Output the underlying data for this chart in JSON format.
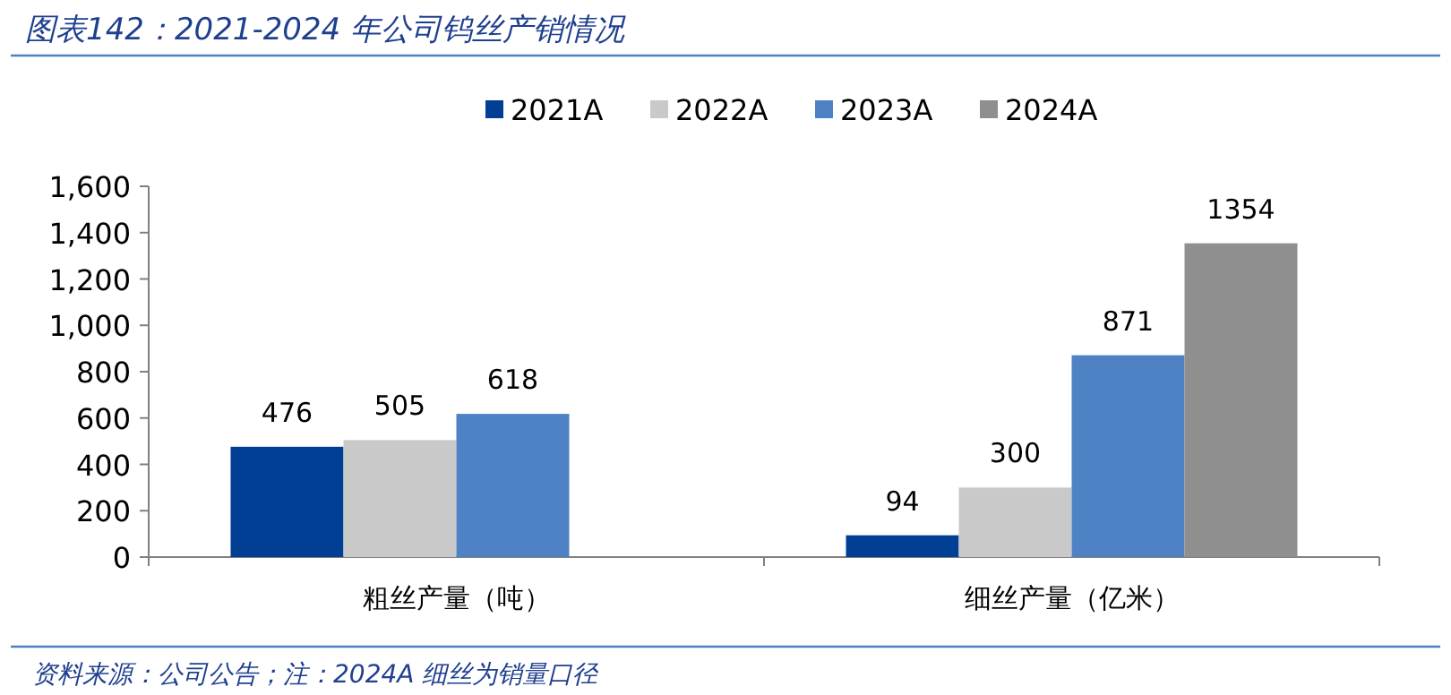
{
  "chart_data": {
    "type": "bar",
    "title": "图表142：2021-2024 年公司钨丝产销情况",
    "categories": [
      "粗丝产量（吨）",
      "细丝产量（亿米）"
    ],
    "series": [
      {
        "name": "2021A",
        "color": "#003f94",
        "values": [
          476,
          94
        ]
      },
      {
        "name": "2022A",
        "color": "#c9c9c9",
        "values": [
          505,
          300
        ]
      },
      {
        "name": "2023A",
        "color": "#4f82c4",
        "values": [
          618,
          871
        ]
      },
      {
        "name": "2024A",
        "color": "#8f8f8f",
        "values": [
          null,
          1354
        ]
      }
    ],
    "ylim": [
      0,
      1600
    ],
    "yticks": [
      0,
      {
        "value": 200,
        "label": "200"
      },
      {
        "value": 400,
        "label": "400"
      },
      {
        "value": 600,
        "label": "600"
      },
      {
        "value": 800,
        "label": "800"
      },
      {
        "value": 1000,
        "label": "1,000"
      },
      {
        "value": 1200,
        "label": "1,200"
      },
      {
        "value": 1400,
        "label": "1,400"
      },
      {
        "value": 1600,
        "label": "1,600"
      }
    ],
    "data_labels": true,
    "legend": "top",
    "grid": false,
    "annotations": [
      "资料来源：公司公告；注：2024A 细丝为销量口径"
    ]
  }
}
